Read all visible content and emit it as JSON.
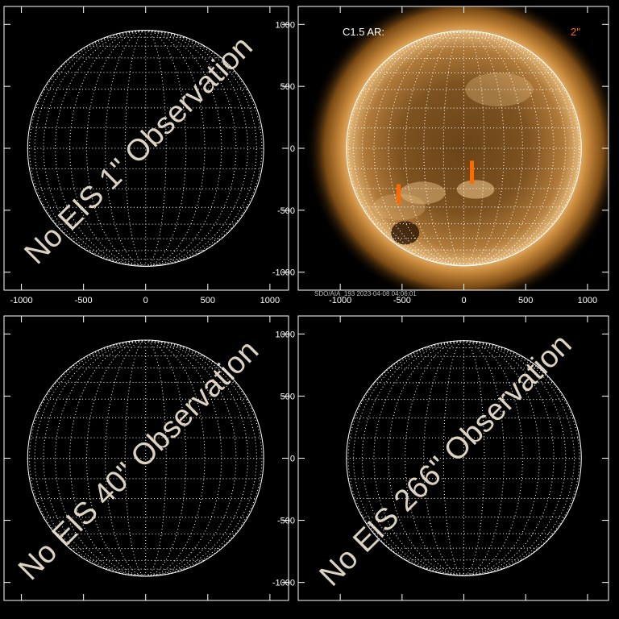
{
  "chart_data": [
    {
      "type": "disk",
      "overlay": "No EIS 1\" Observation",
      "xlim": [
        -1140,
        1150
      ],
      "ylim": [
        -1145,
        1145
      ],
      "xticks": [
        -1000,
        -500,
        0,
        500,
        1000
      ],
      "yticks": [
        -1000,
        -500,
        0,
        500,
        1000
      ],
      "x_tick_labels": true,
      "y_tick_labels": false,
      "disk_radius": 950,
      "grid_step_deg": 10
    },
    {
      "type": "disk",
      "title": "C1.5 AR:",
      "raster_label": "2''",
      "caption": "SDO/AIA_193  2023-04-08 04:06:01",
      "xlim": [
        -1340,
        1170
      ],
      "ylim": [
        -1145,
        1145
      ],
      "xticks": [
        -1000,
        -500,
        0,
        500,
        1000
      ],
      "yticks": [
        -1000,
        -500,
        0,
        500,
        1000
      ],
      "x_tick_labels": true,
      "y_tick_labels": true,
      "disk_radius": 950,
      "grid_step_deg": 10,
      "sun_image": true,
      "slit_color": "#ff6a00",
      "slits": [
        {
          "x": -528,
          "y": [
            -290,
            -450
          ]
        },
        {
          "x": 65,
          "y": [
            -100,
            -285
          ]
        }
      ]
    },
    {
      "type": "disk",
      "overlay": "No EIS 40\" Observation",
      "xlim": [
        -1140,
        1150
      ],
      "ylim": [
        -1145,
        1145
      ],
      "xticks": [
        -1000,
        -500,
        0,
        500,
        1000
      ],
      "yticks": [
        -1000,
        -500,
        0,
        500,
        1000
      ],
      "x_tick_labels": false,
      "y_tick_labels": false,
      "disk_radius": 950,
      "grid_step_deg": 10
    },
    {
      "type": "disk",
      "overlay": "No EIS 266\" Observation",
      "xlim": [
        -1340,
        1170
      ],
      "ylim": [
        -1145,
        1145
      ],
      "xticks": [
        -1000,
        -500,
        0,
        500,
        1000
      ],
      "yticks": [
        -1000,
        -500,
        0,
        500,
        1000
      ],
      "x_tick_labels": false,
      "y_tick_labels": true,
      "disk_radius": 950,
      "grid_step_deg": 10
    }
  ]
}
